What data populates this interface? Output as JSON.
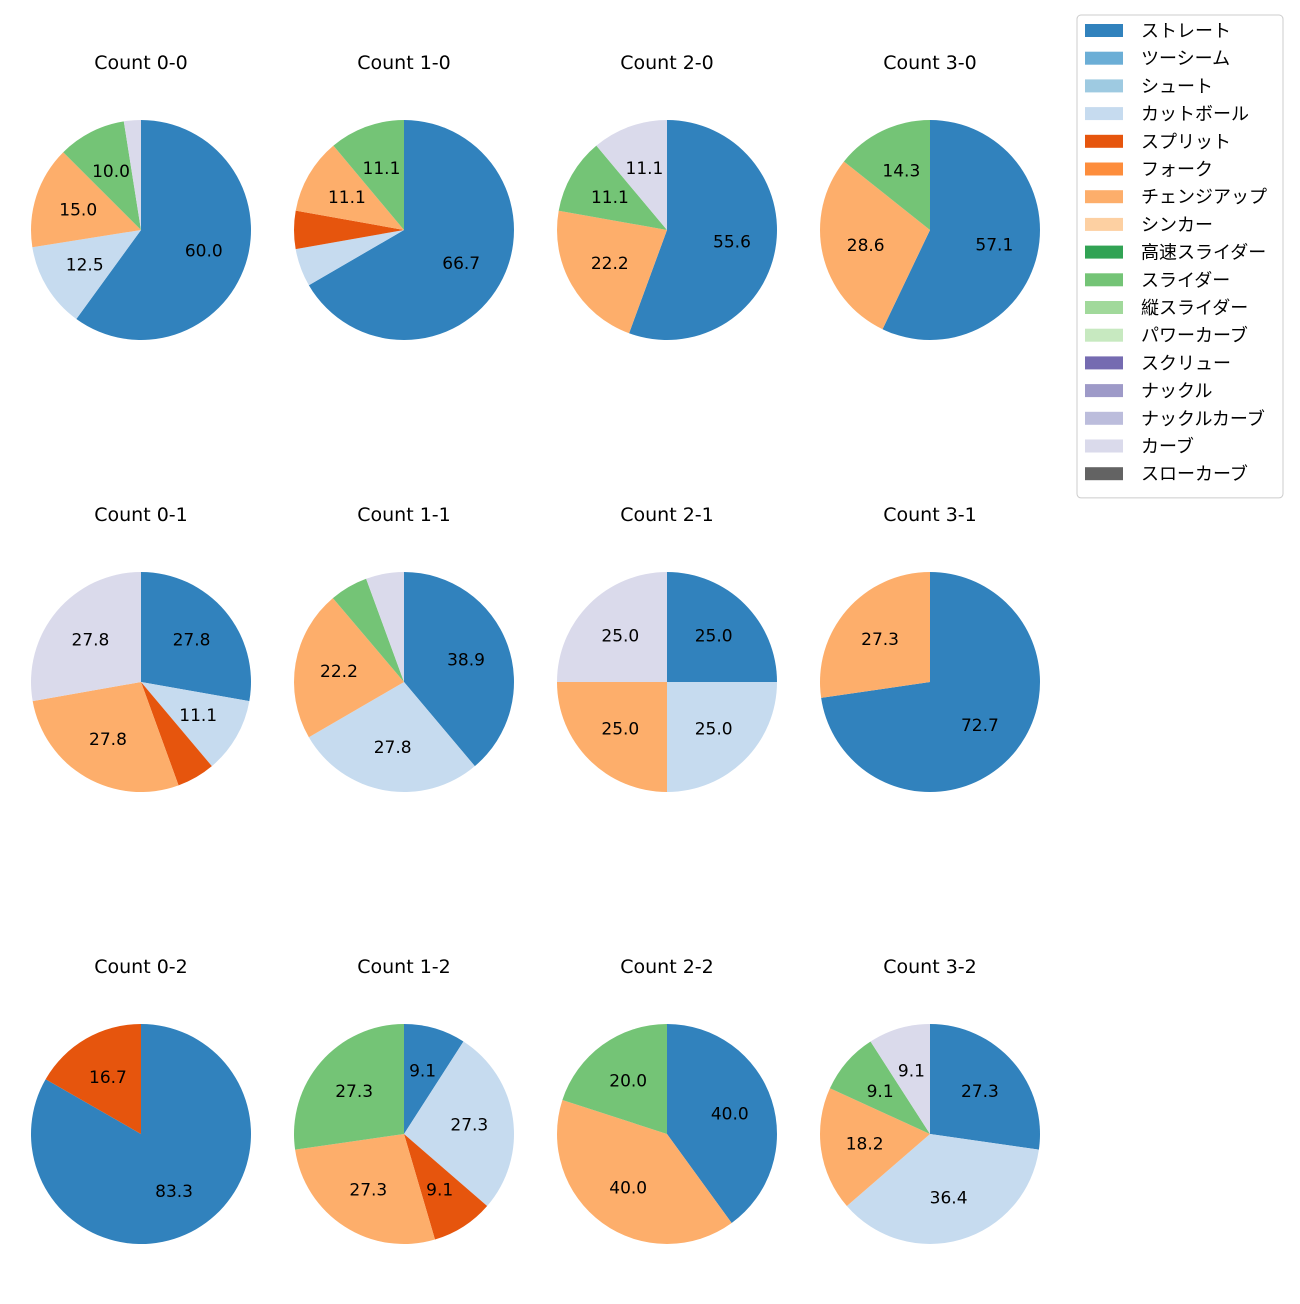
{
  "chart_data": {
    "type": "pie",
    "legend_position": "top-right",
    "legend": [
      {
        "name": "ストレート",
        "color": "#3182bd"
      },
      {
        "name": "ツーシーム",
        "color": "#6baed6"
      },
      {
        "name": "シュート",
        "color": "#9ecae1"
      },
      {
        "name": "カットボール",
        "color": "#c6dbef"
      },
      {
        "name": "スプリット",
        "color": "#e6550d"
      },
      {
        "name": "フォーク",
        "color": "#fd8d3c"
      },
      {
        "name": "チェンジアップ",
        "color": "#fdae6b"
      },
      {
        "name": "シンカー",
        "color": "#fdd0a2"
      },
      {
        "name": "高速スライダー",
        "color": "#31a354"
      },
      {
        "name": "スライダー",
        "color": "#74c476"
      },
      {
        "name": "縦スライダー",
        "color": "#a1d99b"
      },
      {
        "name": "パワーカーブ",
        "color": "#c7e9c0"
      },
      {
        "name": "スクリュー",
        "color": "#756bb1"
      },
      {
        "name": "ナックル",
        "color": "#9e9ac8"
      },
      {
        "name": "ナックルカーブ",
        "color": "#bcbddc"
      },
      {
        "name": "カーブ",
        "color": "#dadaeb"
      },
      {
        "name": "スローカーブ",
        "color": "#636363"
      }
    ],
    "pies": [
      {
        "title": "Count 0-0",
        "slices": [
          {
            "type": "ストレート",
            "value": 60.0,
            "label": "60.0"
          },
          {
            "type": "カットボール",
            "value": 12.5,
            "label": "12.5"
          },
          {
            "type": "チェンジアップ",
            "value": 15.0,
            "label": "15.0"
          },
          {
            "type": "スライダー",
            "value": 10.0,
            "label": "10.0"
          },
          {
            "type": "カーブ",
            "value": 2.5,
            "label": ""
          }
        ]
      },
      {
        "title": "Count 1-0",
        "slices": [
          {
            "type": "ストレート",
            "value": 66.7,
            "label": "66.7"
          },
          {
            "type": "カットボール",
            "value": 5.6,
            "label": ""
          },
          {
            "type": "スプリット",
            "value": 5.6,
            "label": ""
          },
          {
            "type": "チェンジアップ",
            "value": 11.1,
            "label": "11.1"
          },
          {
            "type": "スライダー",
            "value": 11.1,
            "label": "11.1"
          }
        ]
      },
      {
        "title": "Count 2-0",
        "slices": [
          {
            "type": "ストレート",
            "value": 55.6,
            "label": "55.6"
          },
          {
            "type": "チェンジアップ",
            "value": 22.2,
            "label": "22.2"
          },
          {
            "type": "スライダー",
            "value": 11.1,
            "label": "11.1"
          },
          {
            "type": "カーブ",
            "value": 11.1,
            "label": "11.1"
          }
        ]
      },
      {
        "title": "Count 3-0",
        "slices": [
          {
            "type": "ストレート",
            "value": 57.1,
            "label": "57.1"
          },
          {
            "type": "チェンジアップ",
            "value": 28.6,
            "label": "28.6"
          },
          {
            "type": "スライダー",
            "value": 14.3,
            "label": "14.3"
          }
        ]
      },
      {
        "title": "Count 0-1",
        "slices": [
          {
            "type": "ストレート",
            "value": 27.8,
            "label": "27.8"
          },
          {
            "type": "カットボール",
            "value": 11.1,
            "label": "11.1"
          },
          {
            "type": "スプリット",
            "value": 5.6,
            "label": ""
          },
          {
            "type": "チェンジアップ",
            "value": 27.8,
            "label": "27.8"
          },
          {
            "type": "カーブ",
            "value": 27.8,
            "label": "27.8"
          }
        ]
      },
      {
        "title": "Count 1-1",
        "slices": [
          {
            "type": "ストレート",
            "value": 38.9,
            "label": "38.9"
          },
          {
            "type": "カットボール",
            "value": 27.8,
            "label": "27.8"
          },
          {
            "type": "チェンジアップ",
            "value": 22.2,
            "label": "22.2"
          },
          {
            "type": "スライダー",
            "value": 5.6,
            "label": ""
          },
          {
            "type": "カーブ",
            "value": 5.6,
            "label": ""
          }
        ]
      },
      {
        "title": "Count 2-1",
        "slices": [
          {
            "type": "ストレート",
            "value": 25.0,
            "label": "25.0"
          },
          {
            "type": "カットボール",
            "value": 25.0,
            "label": "25.0"
          },
          {
            "type": "チェンジアップ",
            "value": 25.0,
            "label": "25.0"
          },
          {
            "type": "カーブ",
            "value": 25.0,
            "label": "25.0"
          }
        ]
      },
      {
        "title": "Count 3-1",
        "slices": [
          {
            "type": "ストレート",
            "value": 72.7,
            "label": "72.7"
          },
          {
            "type": "チェンジアップ",
            "value": 27.3,
            "label": "27.3"
          }
        ]
      },
      {
        "title": "Count 0-2",
        "slices": [
          {
            "type": "ストレート",
            "value": 83.3,
            "label": "83.3"
          },
          {
            "type": "スプリット",
            "value": 16.7,
            "label": "16.7"
          }
        ]
      },
      {
        "title": "Count 1-2",
        "slices": [
          {
            "type": "ストレート",
            "value": 9.1,
            "label": "9.1"
          },
          {
            "type": "カットボール",
            "value": 27.3,
            "label": "27.3"
          },
          {
            "type": "スプリット",
            "value": 9.1,
            "label": "9.1"
          },
          {
            "type": "チェンジアップ",
            "value": 27.3,
            "label": "27.3"
          },
          {
            "type": "スライダー",
            "value": 27.3,
            "label": "27.3"
          }
        ]
      },
      {
        "title": "Count 2-2",
        "slices": [
          {
            "type": "ストレート",
            "value": 40.0,
            "label": "40.0"
          },
          {
            "type": "チェンジアップ",
            "value": 40.0,
            "label": "40.0"
          },
          {
            "type": "スライダー",
            "value": 20.0,
            "label": "20.0"
          }
        ]
      },
      {
        "title": "Count 3-2",
        "slices": [
          {
            "type": "ストレート",
            "value": 27.3,
            "label": "27.3"
          },
          {
            "type": "カットボール",
            "value": 36.4,
            "label": "36.4"
          },
          {
            "type": "チェンジアップ",
            "value": 18.2,
            "label": "18.2"
          },
          {
            "type": "スライダー",
            "value": 9.1,
            "label": "9.1"
          },
          {
            "type": "カーブ",
            "value": 9.1,
            "label": "9.1"
          }
        ]
      }
    ]
  }
}
